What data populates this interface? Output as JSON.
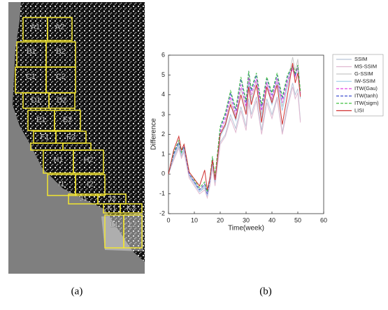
{
  "image": {
    "regions": [
      "A1",
      "A2",
      "B1",
      "B2",
      "C1",
      "C2",
      "D1",
      "D2",
      "E1",
      "E2",
      "F1",
      "F2",
      "H1",
      "H2",
      "I1",
      "I2",
      "J1",
      "J2",
      "K1",
      "K2",
      "L1",
      "L2"
    ]
  },
  "captions": [
    "(a)",
    "(b)"
  ],
  "chart_data": {
    "type": "line",
    "xlabel": "Time(week)",
    "ylabel": "Difference",
    "xlim": [
      0,
      60
    ],
    "xticks": [
      0,
      10,
      20,
      30,
      40,
      50,
      60
    ],
    "ylim": [
      -2,
      6
    ],
    "yticks": [
      -2,
      -1,
      0,
      1,
      2,
      3,
      4,
      5,
      6
    ],
    "x": [
      0,
      2,
      4,
      5,
      6,
      8,
      12,
      14,
      15,
      16,
      17,
      18,
      20,
      22,
      24,
      26,
      28,
      30,
      31,
      32,
      34,
      36,
      38,
      40,
      42,
      44,
      46,
      48,
      49,
      50,
      51
    ],
    "series": [
      {
        "name": "SSIM",
        "color": "#b7c4d6",
        "dash": false,
        "values": [
          0,
          0.8,
          1.4,
          0.9,
          1.2,
          -0.1,
          -0.9,
          -0.7,
          -1.1,
          -0.5,
          0.4,
          -0.5,
          1.6,
          2.0,
          3.0,
          2.3,
          3.4,
          2.4,
          3.8,
          3.0,
          3.9,
          2.2,
          3.8,
          3.0,
          3.9,
          2.1,
          3.5,
          4.6,
          4.0,
          4.3,
          2.7
        ]
      },
      {
        "name": "MS-SSIM",
        "color": "#e0b8d0",
        "dash": false,
        "values": [
          0,
          0.7,
          1.3,
          0.8,
          1.1,
          -0.2,
          -1.0,
          -0.8,
          -1.2,
          -0.6,
          0.3,
          -0.6,
          1.5,
          1.9,
          2.8,
          2.1,
          3.2,
          2.2,
          3.6,
          2.8,
          3.7,
          2.0,
          3.6,
          2.8,
          3.8,
          2.0,
          3.3,
          4.4,
          3.8,
          4.1,
          2.6
        ]
      },
      {
        "name": "G-SSIM",
        "color": "#c8c8c8",
        "dash": false,
        "values": [
          0,
          1.0,
          1.6,
          1.0,
          1.3,
          0.0,
          -0.8,
          -0.6,
          -1.0,
          -0.4,
          0.6,
          -0.4,
          2.0,
          2.6,
          3.7,
          2.9,
          4.3,
          3.3,
          4.8,
          3.8,
          4.7,
          3.0,
          4.6,
          3.7,
          4.8,
          3.4,
          4.6,
          5.9,
          5.2,
          5.8,
          4.0
        ]
      },
      {
        "name": "IW-SSIM",
        "color": "#a8d0ea",
        "dash": false,
        "values": [
          0,
          0.9,
          1.5,
          1.0,
          1.3,
          0.0,
          -0.9,
          -0.6,
          -1.1,
          -0.4,
          0.5,
          -0.4,
          1.9,
          2.4,
          3.5,
          2.7,
          4.0,
          3.1,
          4.6,
          3.6,
          4.5,
          2.8,
          4.4,
          3.5,
          4.6,
          3.2,
          4.4,
          5.5,
          4.9,
          5.4,
          3.8
        ]
      },
      {
        "name": "ITW(Gau)",
        "color": "#e040e0",
        "dash": true,
        "values": [
          0,
          1.0,
          1.6,
          1.1,
          1.4,
          0.0,
          -0.8,
          -0.5,
          -1.0,
          -0.3,
          0.7,
          -0.3,
          2.1,
          2.8,
          3.9,
          3.0,
          4.5,
          3.4,
          4.9,
          4.0,
          4.8,
          3.2,
          4.6,
          3.8,
          4.8,
          3.6,
          4.7,
          5.3,
          4.9,
          5.4,
          4.0
        ]
      },
      {
        "name": "ITW(tanh)",
        "color": "#4050d0",
        "dash": true,
        "values": [
          0,
          1.0,
          1.6,
          1.1,
          1.4,
          0.0,
          -0.8,
          -0.5,
          -1.0,
          -0.3,
          0.8,
          -0.2,
          2.3,
          3.0,
          4.1,
          3.2,
          4.8,
          3.6,
          5.2,
          4.2,
          5.0,
          3.4,
          4.8,
          4.0,
          5.0,
          3.8,
          4.9,
          5.4,
          5.0,
          5.5,
          4.1
        ]
      },
      {
        "name": "ITW(sigm)",
        "color": "#40c040",
        "dash": true,
        "values": [
          0,
          1.1,
          1.7,
          1.1,
          1.5,
          0.1,
          -0.7,
          -0.4,
          -0.9,
          -0.2,
          0.9,
          -0.1,
          2.4,
          3.1,
          4.2,
          3.3,
          4.9,
          3.7,
          5.2,
          4.3,
          5.1,
          3.5,
          4.9,
          4.1,
          5.1,
          3.9,
          5.0,
          5.5,
          5.1,
          5.5,
          4.2
        ]
      },
      {
        "name": "LISI",
        "color": "#d03030",
        "dash": false,
        "values": [
          0,
          1.2,
          1.9,
          1.2,
          1.5,
          0.1,
          -0.6,
          0.2,
          -0.8,
          -0.2,
          0.7,
          -0.3,
          2.0,
          2.5,
          3.5,
          2.8,
          4.0,
          3.0,
          4.4,
          3.5,
          4.5,
          2.6,
          4.4,
          3.6,
          4.5,
          2.5,
          4.0,
          5.6,
          4.6,
          5.1,
          3.9
        ]
      }
    ]
  }
}
